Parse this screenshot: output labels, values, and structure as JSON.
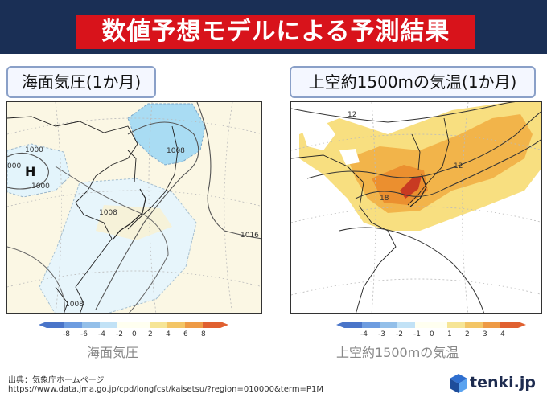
{
  "header": {
    "title": "数値予想モデルによる予測結果"
  },
  "left_panel": {
    "label": "海面気圧(1か月)",
    "colorbar_title": "海面気圧",
    "colorbar_ticks": [
      "-8",
      "-6",
      "-4",
      "-2",
      "0",
      "2",
      "4",
      "6",
      "8"
    ],
    "contour_labels": [
      "1000",
      "000",
      "1000",
      "1008",
      "1008",
      "1016",
      "1008"
    ],
    "high_marker": "H"
  },
  "right_panel": {
    "label": "上空約1500mの気温(1か月)",
    "colorbar_title": "上空約1500mの気温",
    "colorbar_ticks": [
      "-4",
      "-3",
      "-2",
      "-1",
      "0",
      "1",
      "2",
      "3",
      "4"
    ],
    "contour_labels": [
      "12",
      "12",
      "18"
    ]
  },
  "footer": {
    "source_label": "出典：気象庁ホームページ",
    "source_url": "https://www.data.jma.go.jp/cpd/longfcst/kaisetsu/?region=010000&term=P1M"
  },
  "logo": {
    "text": "tenki.jp",
    "icon": "tenki-cube-icon"
  },
  "colors": {
    "banner_bg": "#1a2f55",
    "title_bg": "#d8131b",
    "anomaly_negative": "#6fa8dc",
    "anomaly_positive": "#e06030",
    "map_fill": "#fbf7e4"
  }
}
